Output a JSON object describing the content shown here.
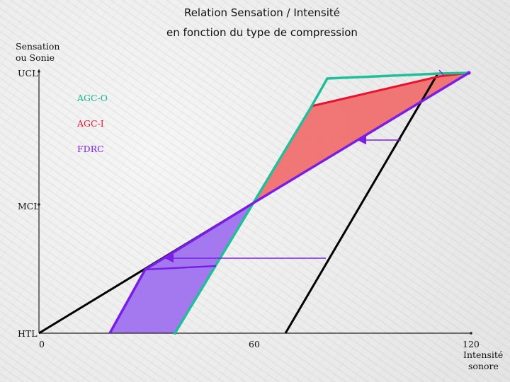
{
  "title": {
    "line1": "Relation Sensation / Intensité",
    "line2": "en fonction du type de compression"
  },
  "y_axis": {
    "label_line1": "Sensation",
    "label_line2": "ou Sonie",
    "ticks": [
      "UCL",
      "MCL",
      "HTL"
    ]
  },
  "x_axis": {
    "ticks": [
      "0",
      "60",
      "120"
    ],
    "label_line1": "Intensité",
    "label_line2": "sonore"
  },
  "legend": [
    {
      "name": "AGC-O",
      "color": "#16b68e"
    },
    {
      "name": "AGC-I",
      "color": "#e8132e"
    },
    {
      "name": "FDRC",
      "color": "#7a1ee6"
    }
  ],
  "colors": {
    "agc_o": "#1fbf9a",
    "agc_i": "#e8132e",
    "fdrc": "#7a1ee6",
    "linear": "#000000",
    "fill_red": "#f07070",
    "fill_purple": "#9b6cf0"
  }
}
